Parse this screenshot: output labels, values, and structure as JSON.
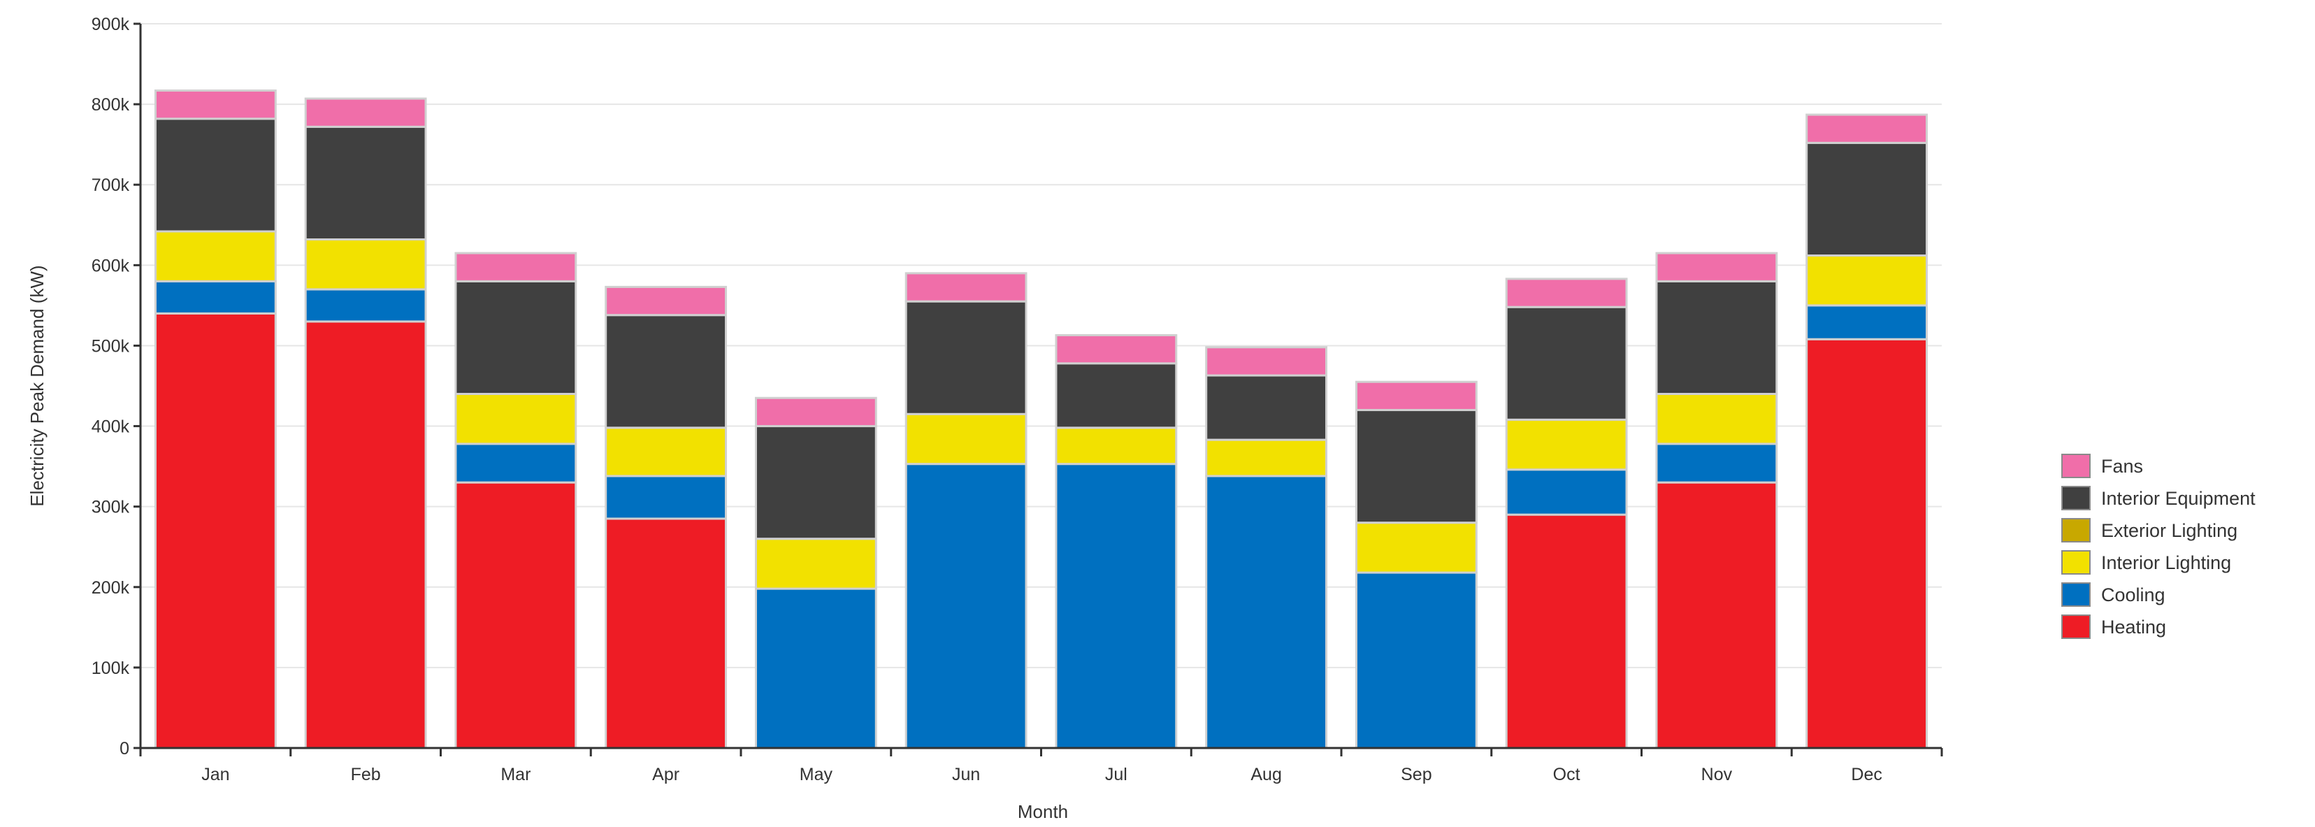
{
  "chart_data": {
    "type": "bar",
    "stacked": true,
    "xlabel": "Month",
    "ylabel": "Electricity Peak Demand (kW)",
    "ylim": [
      0,
      900000
    ],
    "y_ticks": [
      "0",
      "100k",
      "200k",
      "300k",
      "400k",
      "500k",
      "600k",
      "700k",
      "800k",
      "900k"
    ],
    "grid": "horizontal",
    "legend_position": "right",
    "categories": [
      "Jan",
      "Feb",
      "Mar",
      "Apr",
      "May",
      "Jun",
      "Jul",
      "Aug",
      "Sep",
      "Oct",
      "Nov",
      "Dec"
    ],
    "series": [
      {
        "name": "Heating",
        "color": "#ee1c25",
        "values": [
          540000,
          530000,
          330000,
          285000,
          0,
          0,
          0,
          0,
          0,
          290000,
          330000,
          508000
        ]
      },
      {
        "name": "Cooling",
        "color": "#0070c0",
        "values": [
          40000,
          40000,
          48000,
          53000,
          198000,
          353000,
          353000,
          338000,
          218000,
          56000,
          48000,
          42000
        ]
      },
      {
        "name": "Interior Lighting",
        "color": "#f2e100",
        "values": [
          62000,
          62000,
          62000,
          60000,
          62000,
          62000,
          45000,
          45000,
          62000,
          62000,
          62000,
          62000
        ]
      },
      {
        "name": "Exterior Lighting",
        "color": "#c8a800",
        "values": [
          0,
          0,
          0,
          0,
          0,
          0,
          0,
          0,
          0,
          0,
          0,
          0
        ]
      },
      {
        "name": "Interior Equipment",
        "color": "#404040",
        "values": [
          140000,
          140000,
          140000,
          140000,
          140000,
          140000,
          80000,
          80000,
          140000,
          140000,
          140000,
          140000
        ]
      },
      {
        "name": "Fans",
        "color": "#f06ea9",
        "values": [
          35000,
          35000,
          35000,
          35000,
          35000,
          35000,
          35000,
          35000,
          35000,
          35000,
          35000,
          35000
        ]
      }
    ],
    "legend_order": [
      "Fans",
      "Interior Equipment",
      "Exterior Lighting",
      "Interior Lighting",
      "Cooling",
      "Heating"
    ]
  }
}
